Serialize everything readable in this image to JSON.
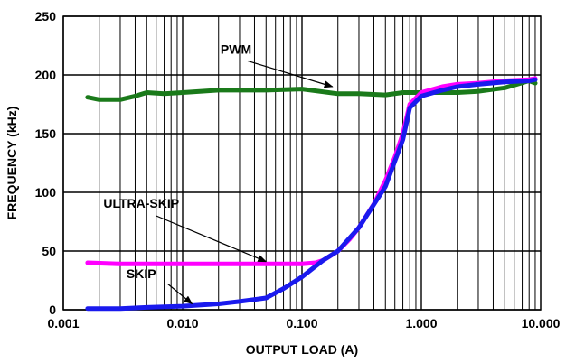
{
  "chart_data": {
    "type": "line",
    "xlabel": "OUTPUT LOAD (A)",
    "ylabel": "FREQUENCY (kHz)",
    "x_scale": "log",
    "xlim": [
      0.001,
      10
    ],
    "ylim": [
      0,
      250
    ],
    "x_ticks": [
      0.001,
      0.01,
      0.1,
      1,
      10
    ],
    "x_tick_labels": [
      "0.001",
      "0.010",
      "0.100",
      "1.000",
      "10.000"
    ],
    "y_ticks": [
      0,
      50,
      100,
      150,
      200,
      250
    ],
    "y_tick_labels": [
      "0",
      "50",
      "100",
      "150",
      "200",
      "250"
    ],
    "grid": true,
    "series": [
      {
        "name": "PWM",
        "color": "#1a7a1a",
        "x": [
          0.0016,
          0.002,
          0.003,
          0.004,
          0.005,
          0.007,
          0.01,
          0.02,
          0.05,
          0.1,
          0.2,
          0.3,
          0.5,
          0.7,
          1.0,
          1.5,
          2.0,
          3.0,
          5.0,
          8.0,
          9.0
        ],
        "y": [
          181,
          179,
          179,
          182,
          185,
          184,
          185,
          187,
          187,
          188,
          184,
          184,
          183,
          185,
          185,
          185,
          185,
          186,
          189,
          195,
          193
        ]
      },
      {
        "name": "ULTRA-SKIP",
        "color": "#ff00ff",
        "x": [
          0.0016,
          0.003,
          0.01,
          0.03,
          0.05,
          0.1,
          0.13,
          0.15,
          0.18,
          0.2,
          0.25,
          0.3,
          0.4,
          0.5,
          0.6,
          0.7,
          0.8,
          1.0,
          1.5,
          2.0,
          3.0,
          5.0,
          8.0,
          9.0
        ],
        "y": [
          40,
          39,
          39,
          39,
          39,
          39,
          40,
          42,
          47,
          50,
          60,
          70,
          90,
          110,
          130,
          150,
          175,
          185,
          190,
          192,
          193,
          195,
          196,
          197
        ]
      },
      {
        "name": "SKIP",
        "color": "#1a1aee",
        "x": [
          0.0016,
          0.003,
          0.005,
          0.01,
          0.02,
          0.03,
          0.05,
          0.07,
          0.1,
          0.15,
          0.2,
          0.3,
          0.5,
          0.7,
          0.8,
          1.0,
          1.5,
          2.0,
          3.0,
          5.0,
          8.0,
          9.0
        ],
        "y": [
          1,
          1,
          2,
          3,
          5,
          7,
          10,
          18,
          28,
          42,
          50,
          70,
          105,
          145,
          172,
          182,
          187,
          190,
          192,
          194,
          195,
          196
        ]
      }
    ],
    "annotations": [
      {
        "text": "PWM"
      },
      {
        "text": "ULTRA-SKIP"
      },
      {
        "text": "SKIP"
      }
    ]
  }
}
